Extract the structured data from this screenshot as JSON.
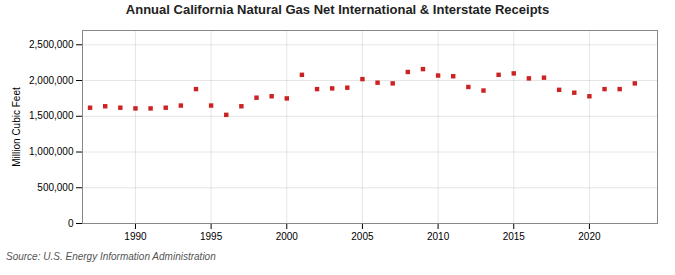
{
  "chart_data": {
    "type": "scatter",
    "title": "Annual California Natural Gas Net International & Interstate Receipts",
    "ylabel": "Million Cubic Feet",
    "source": "Source: U.S. Energy Information Administration",
    "color": "#cc2222",
    "marker": "square",
    "grid": true,
    "x": [
      1987,
      1988,
      1989,
      1990,
      1991,
      1992,
      1993,
      1994,
      1995,
      1996,
      1997,
      1998,
      1999,
      2000,
      2001,
      2002,
      2003,
      2004,
      2005,
      2006,
      2007,
      2008,
      2009,
      2010,
      2011,
      2012,
      2013,
      2014,
      2015,
      2016,
      2017,
      2018,
      2019,
      2020,
      2021,
      2022,
      2023
    ],
    "values": [
      1620000,
      1640000,
      1620000,
      1610000,
      1610000,
      1620000,
      1650000,
      1880000,
      1650000,
      1520000,
      1640000,
      1760000,
      1780000,
      1750000,
      2080000,
      1880000,
      1890000,
      1900000,
      2020000,
      1970000,
      1960000,
      2120000,
      2160000,
      2070000,
      2060000,
      1910000,
      1860000,
      2080000,
      2100000,
      2030000,
      2040000,
      1870000,
      1830000,
      1780000,
      1880000,
      1880000,
      1960000
    ],
    "xlim": [
      1986.5,
      2024.5
    ],
    "xticks": [
      1990,
      1995,
      2000,
      2005,
      2010,
      2015,
      2020
    ],
    "ylim": [
      0,
      2700000
    ],
    "yticks": [
      0,
      {
        "value": 500000,
        "label": "500,000"
      },
      {
        "value": 1000000,
        "label": "1,000,000"
      },
      {
        "value": 1500000,
        "label": "1,500,000"
      },
      {
        "value": 2000000,
        "label": "2,000,000"
      },
      {
        "value": 2500000,
        "label": "2,500,000"
      }
    ]
  }
}
